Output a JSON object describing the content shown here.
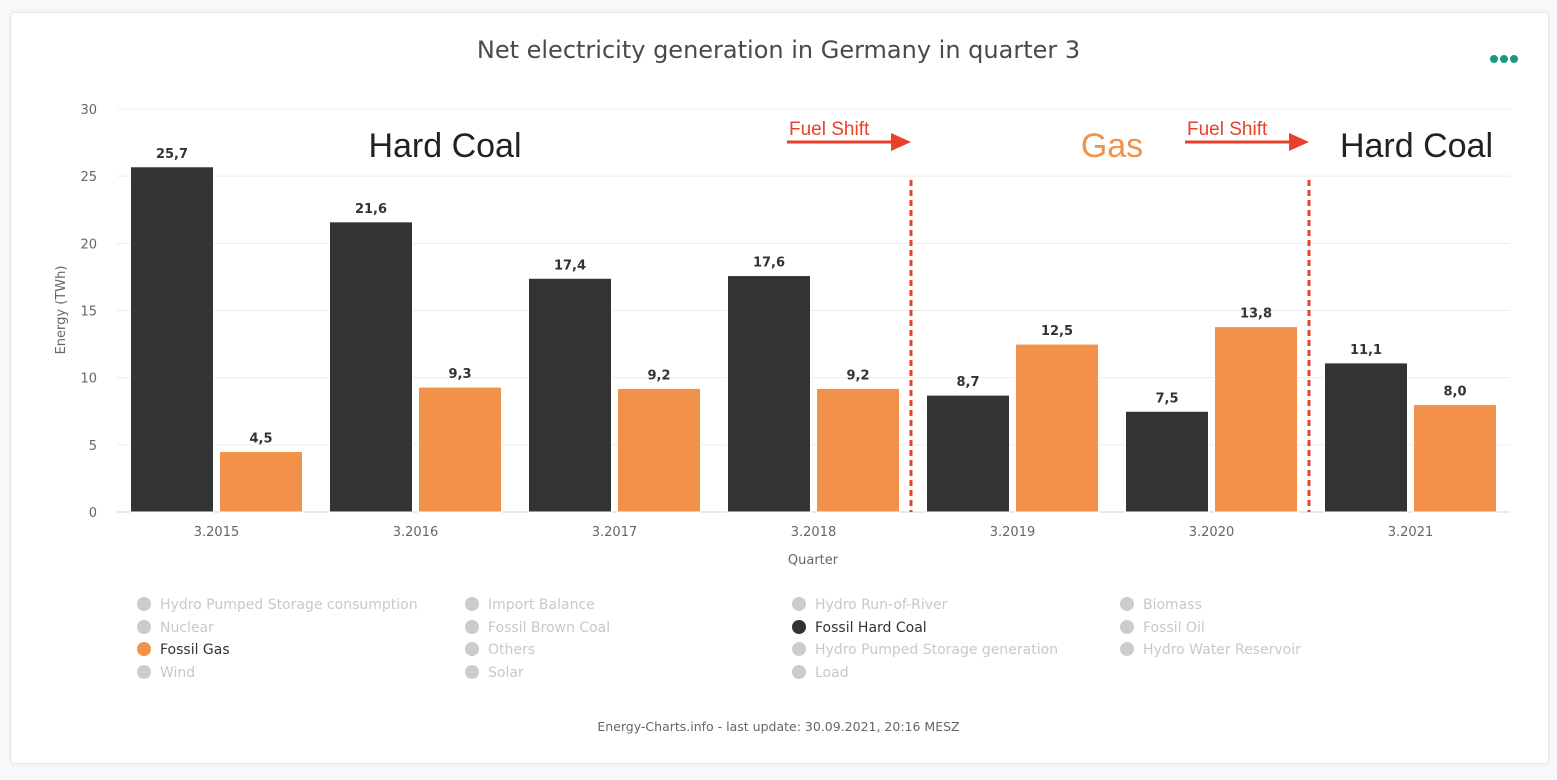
{
  "header": {
    "title": "Net electricity generation in Germany in quarter 3",
    "menu_icon": "more-dots-icon"
  },
  "colors": {
    "hard_coal": "#333333",
    "gas": "#f2924a",
    "annotation_red": "#e8402a",
    "gas_label": "#f2924a",
    "menu": "#1a9a7a"
  },
  "chart_data": {
    "type": "bar",
    "title": "Net electricity generation in Germany in quarter 3",
    "xlabel": "Quarter",
    "ylabel": "Energy (TWh)",
    "ylim": [
      0,
      30
    ],
    "yticks": [
      0,
      5,
      10,
      15,
      20,
      25,
      30
    ],
    "grid": true,
    "categories": [
      "3.2015",
      "3.2016",
      "3.2017",
      "3.2018",
      "3.2019",
      "3.2020",
      "3.2021"
    ],
    "series": [
      {
        "name": "Fossil Hard Coal",
        "values": [
          25.7,
          21.6,
          17.4,
          17.6,
          8.7,
          7.5,
          11.1
        ],
        "labels": [
          "25,7",
          "21,6",
          "17,4",
          "17,6",
          "8,7",
          "7,5",
          "11,1"
        ]
      },
      {
        "name": "Fossil Gas",
        "values": [
          4.5,
          9.3,
          9.2,
          9.2,
          12.5,
          13.8,
          8.0
        ],
        "labels": [
          "4,5",
          "9,3",
          "9,2",
          "9,2",
          "12,5",
          "13,8",
          "8,0"
        ]
      }
    ],
    "annotations": {
      "regions": [
        {
          "label": "Hard Coal",
          "from": "3.2015",
          "to": "3.2018",
          "color": "#222222"
        },
        {
          "label": "Gas",
          "from": "3.2019",
          "to": "3.2020",
          "color": "#f2924a"
        },
        {
          "label": "Hard Coal",
          "from": "3.2021",
          "to": "3.2021",
          "color": "#222222"
        }
      ],
      "shifts": [
        {
          "label": "Fuel Shift",
          "between": [
            "3.2018",
            "3.2019"
          ]
        },
        {
          "label": "Fuel Shift",
          "between": [
            "3.2020",
            "3.2021"
          ]
        }
      ]
    },
    "legend_placement": "bottom"
  },
  "legend": {
    "items": [
      {
        "label": "Hydro Pumped Storage consumption",
        "active": false
      },
      {
        "label": "Import Balance",
        "active": false
      },
      {
        "label": "Hydro Run-of-River",
        "active": false
      },
      {
        "label": "Biomass",
        "active": false
      },
      {
        "label": "Nuclear",
        "active": false
      },
      {
        "label": "Fossil Brown Coal",
        "active": false
      },
      {
        "label": "Fossil Hard Coal",
        "active": true,
        "color": "#333333"
      },
      {
        "label": "Fossil Oil",
        "active": false
      },
      {
        "label": "Fossil Gas",
        "active": true,
        "color": "#f2924a"
      },
      {
        "label": "Others",
        "active": false
      },
      {
        "label": "Hydro Pumped Storage generation",
        "active": false
      },
      {
        "label": "Hydro Water Reservoir",
        "active": false
      },
      {
        "label": "Wind",
        "active": false
      },
      {
        "label": "Solar",
        "active": false
      },
      {
        "label": "Load",
        "active": false
      }
    ]
  },
  "footer": {
    "text": "Energy-Charts.info - last update: 30.09.2021, 20:16 MESZ"
  }
}
